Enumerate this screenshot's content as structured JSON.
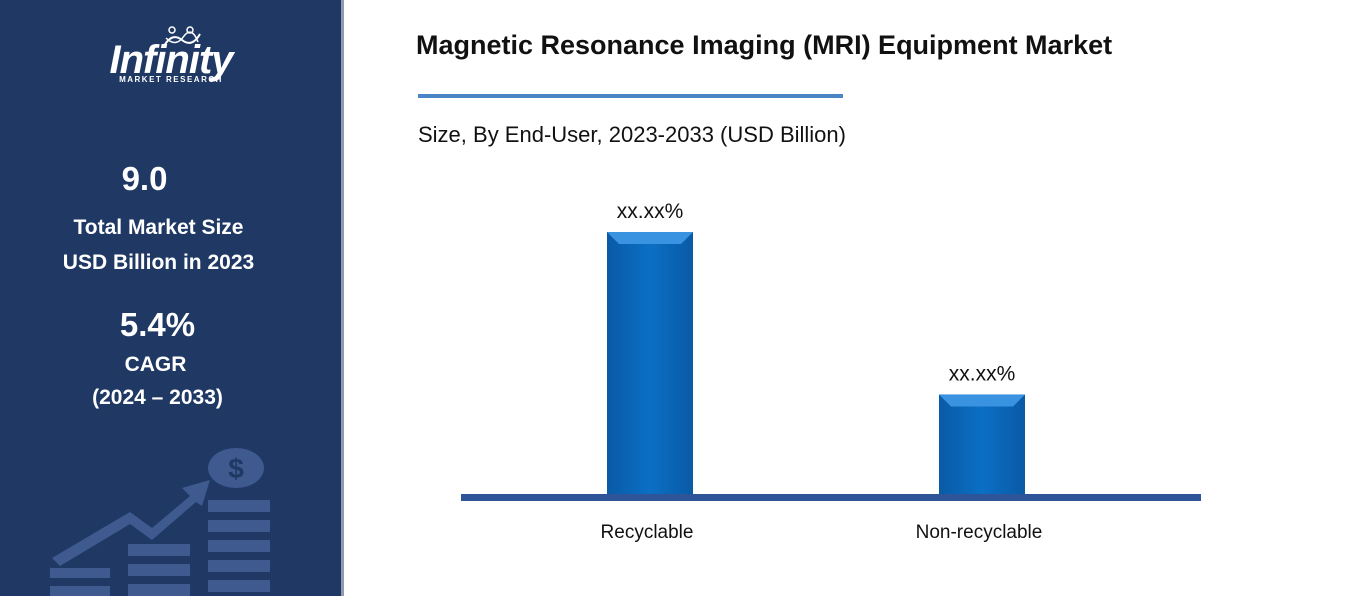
{
  "sidebar": {
    "logo_name": "Infinity",
    "logo_subtitle": "MARKET RESEARCH",
    "market_size_value": "9.0",
    "market_size_label_line1": "Total Market Size",
    "market_size_label_line2": "USD Billion in 2023",
    "cagr_value": "5.4%",
    "cagr_label_line1": "CAGR",
    "cagr_label_line2": "(2024 – 2033)",
    "graphic_icon": "dollar-growth-icon",
    "background_color": "#1f3864"
  },
  "chart_data": {
    "type": "bar",
    "title": "Magnetic Resonance Imaging (MRI) Equipment Market",
    "subtitle": "Size, By End-User, 2023-2033 (USD Billion)",
    "categories": [
      "Recyclable",
      "Non-recyclable"
    ],
    "values": [
      100,
      38
    ],
    "data_labels": [
      "xx.xx%",
      "xx.xx%"
    ],
    "xlabel": "",
    "ylabel": "",
    "ylim": [
      0,
      100
    ],
    "grid": false,
    "legend": "none",
    "bar_color": "#0b6fc4",
    "axis_color": "#2e5597",
    "title_rule_color": "#4a86c5"
  }
}
